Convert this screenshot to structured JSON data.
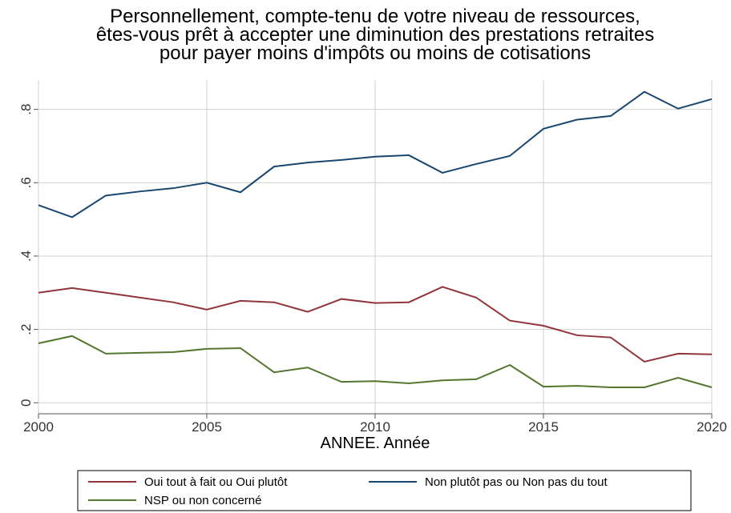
{
  "chart_data": {
    "type": "line",
    "title": [
      "Personnellement, compte-tenu de votre niveau de ressources,",
      "êtes-vous prêt à accepter une diminution des prestations retraites",
      "pour payer moins d'impôts ou moins de cotisations"
    ],
    "x_label": "ANNEE. Année",
    "x": [
      2000,
      2001,
      2002,
      2003,
      2004,
      2005,
      2006,
      2007,
      2008,
      2009,
      2010,
      2011,
      2012,
      2013,
      2014,
      2015,
      2016,
      2017,
      2018,
      2019,
      2020
    ],
    "series": [
      {
        "name": "Oui tout à fait ou Oui plutôt",
        "color": "#90353b",
        "values": [
          0.3,
          0.313,
          0.3,
          0.287,
          0.274,
          0.254,
          0.278,
          0.274,
          0.248,
          0.283,
          0.272,
          0.274,
          0.316,
          0.287,
          0.224,
          0.21,
          0.184,
          0.178,
          0.112,
          0.134,
          0.132
        ]
      },
      {
        "name": "Non plutôt pas ou Non pas du tout",
        "color": "#1a476f",
        "values": [
          0.539,
          0.506,
          0.565,
          0.576,
          0.585,
          0.6,
          0.574,
          0.644,
          0.655,
          0.662,
          0.671,
          0.675,
          0.627,
          0.651,
          0.673,
          0.747,
          0.772,
          0.782,
          0.848,
          0.802,
          0.828
        ]
      },
      {
        "name": "NSP ou non concerné",
        "color": "#55752f",
        "values": [
          0.162,
          0.182,
          0.134,
          0.136,
          0.138,
          0.147,
          0.149,
          0.083,
          0.096,
          0.057,
          0.059,
          0.053,
          0.061,
          0.064,
          0.103,
          0.044,
          0.046,
          0.042,
          0.042,
          0.068,
          0.042
        ]
      }
    ],
    "xlim": [
      2000,
      2020
    ],
    "xticks": [
      2000,
      2005,
      2010,
      2015,
      2020
    ],
    "ylim": [
      -0.03,
      0.88
    ],
    "yticks": [
      0,
      {
        "value": 0.2,
        "label": ".2"
      },
      {
        "value": 0.4,
        "label": ".4"
      },
      {
        "value": 0.6,
        "label": ".6"
      },
      {
        "value": 0.8,
        "label": ".8"
      }
    ],
    "grid": true,
    "legend": "bottom"
  }
}
